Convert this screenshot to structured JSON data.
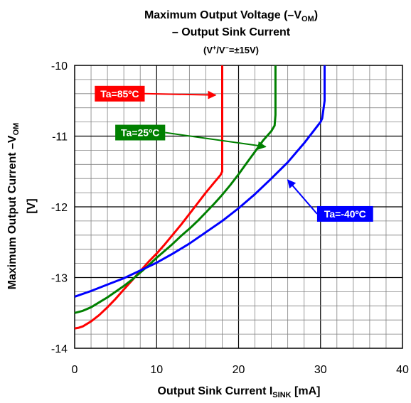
{
  "chart_data": {
    "type": "line",
    "title_line1_main": "Maximum Output Voltage (–V",
    "title_line1_sub": "OM",
    "title_line1_end": ")",
    "title_line2": "– Output Sink Current",
    "subtitle_a": "(V",
    "subtitle_sup1": "+",
    "subtitle_b": "/V",
    "subtitle_sup2": "−",
    "subtitle_c": "=±15V)",
    "xlabel_main": "Output Sink Current I",
    "xlabel_sub": "SINK",
    "xlabel_end": " [mA]",
    "ylabel_main": "Maximum Output Current –V",
    "ylabel_sub": "OM",
    "ylabel_unit": "[V]",
    "xlim": [
      0,
      40
    ],
    "ylim": [
      -14,
      -10
    ],
    "x_ticks": [
      0,
      10,
      20,
      30,
      40
    ],
    "x_tick_labels": [
      "0",
      "10",
      "20",
      "30",
      "40"
    ],
    "y_ticks": [
      -10,
      -11,
      -12,
      -13,
      -14
    ],
    "y_tick_labels": [
      "-10",
      "-11",
      "-12",
      "-13",
      "-14"
    ],
    "grid": true,
    "series": [
      {
        "name": "Ta=85ºC",
        "color": "#ff0000",
        "x": [
          0,
          0.5,
          1,
          2,
          3,
          4,
          5,
          6,
          7,
          8,
          9,
          10,
          11,
          12,
          13,
          14,
          15,
          16,
          17,
          17.8,
          18,
          18,
          18
        ],
        "y": [
          -13.72,
          -13.71,
          -13.69,
          -13.62,
          -13.53,
          -13.42,
          -13.3,
          -13.17,
          -13.04,
          -12.91,
          -12.78,
          -12.66,
          -12.53,
          -12.39,
          -12.25,
          -12.1,
          -11.95,
          -11.8,
          -11.66,
          -11.55,
          -11.5,
          -10.5,
          -10
        ]
      },
      {
        "name": "Ta=25ºC",
        "color": "#008000",
        "x": [
          0,
          1,
          2,
          3,
          4,
          5,
          6,
          7,
          8,
          9,
          10,
          11,
          12,
          13,
          14,
          15,
          16,
          17,
          18,
          19,
          20,
          21,
          22,
          23,
          24,
          24.4,
          24.5,
          24.5
        ],
        "y": [
          -13.5,
          -13.47,
          -13.42,
          -13.35,
          -13.28,
          -13.2,
          -13.12,
          -13.03,
          -12.93,
          -12.83,
          -12.72,
          -12.62,
          -12.52,
          -12.41,
          -12.31,
          -12.2,
          -12.08,
          -11.96,
          -11.83,
          -11.69,
          -11.54,
          -11.38,
          -11.22,
          -11.06,
          -10.93,
          -10.85,
          -10.7,
          -10
        ]
      },
      {
        "name": "Ta=-40ºC",
        "color": "#0000ff",
        "x": [
          0,
          2,
          4,
          6,
          8,
          10,
          12,
          14,
          16,
          18,
          20,
          22,
          24,
          26,
          28,
          30,
          30.2,
          30.5,
          30.5
        ],
        "y": [
          -13.27,
          -13.19,
          -13.1,
          -13.01,
          -12.9,
          -12.79,
          -12.66,
          -12.52,
          -12.36,
          -12.2,
          -12.02,
          -11.82,
          -11.6,
          -11.37,
          -11.1,
          -10.8,
          -10.75,
          -10.5,
          -10
        ]
      }
    ],
    "annotations": [
      {
        "text": "Ta=85ºC",
        "color": "#ff0000",
        "label_x": 5.5,
        "label_y": -10.4,
        "arrow_to_x": 17.2,
        "arrow_to_y": -10.42
      },
      {
        "text": "Ta=25ºC",
        "color": "#008000",
        "label_x": 8,
        "label_y": -10.95,
        "arrow_to_x": 23.3,
        "arrow_to_y": -11.15
      },
      {
        "text": "Ta=-40ºC",
        "color": "#0000ff",
        "label_x": 33,
        "label_y": -12.1,
        "arrow_to_x": 26.0,
        "arrow_to_y": -11.62
      }
    ]
  }
}
